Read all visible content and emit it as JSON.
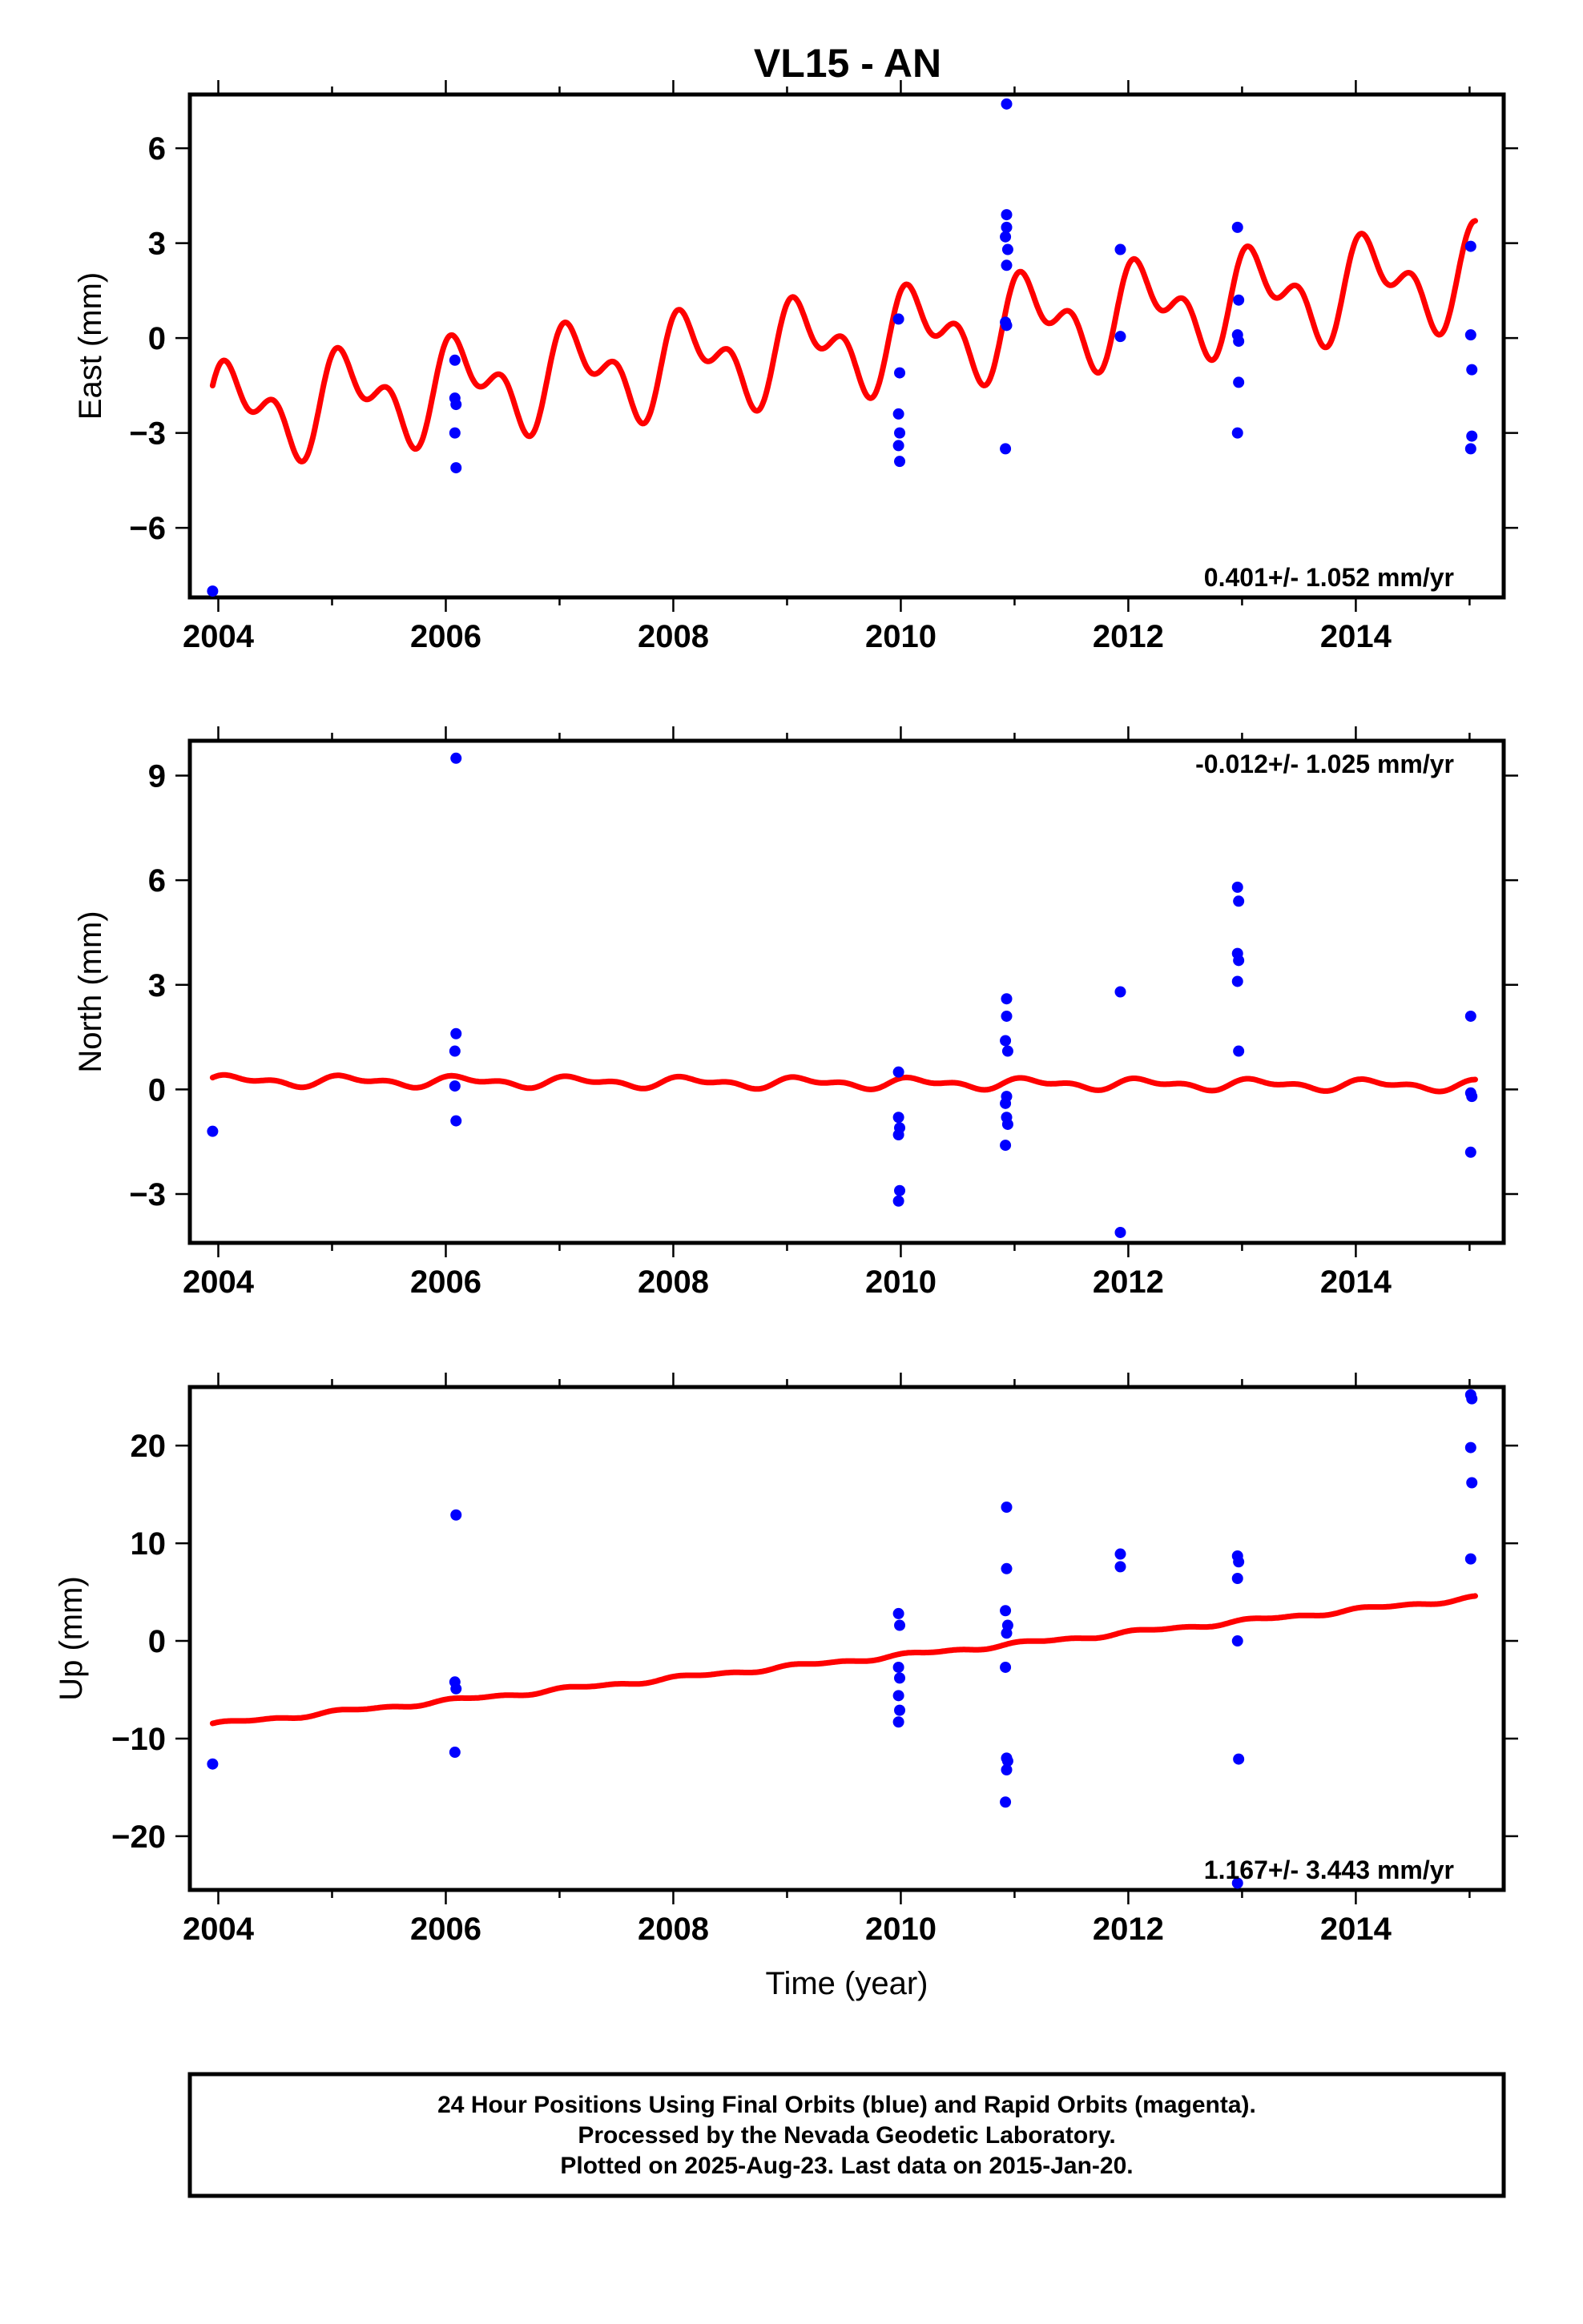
{
  "title": "VL15 - AN",
  "footer": {
    "line1": "24 Hour Positions Using Final Orbits (blue) and Rapid Orbits (magenta).",
    "line2": "Processed by the Nevada Geodetic Laboratory.",
    "line3": "Plotted on 2025-Aug-23. Last data on 2015-Jan-20."
  },
  "colors": {
    "final_orbits": "#0000ff",
    "trend": "#ff0000",
    "frame": "#000000"
  },
  "chart_data": [
    {
      "type": "scatter",
      "ylabel": "East (mm)",
      "xlim": [
        2003.75,
        2015.3
      ],
      "ylim": [
        -8.2,
        7.7
      ],
      "xticks": [
        2004,
        2006,
        2008,
        2010,
        2012,
        2014
      ],
      "yticks": [
        -6,
        -3,
        0,
        3,
        6
      ],
      "ytick_labels": [
        "−6",
        "−3",
        "0",
        "3",
        "6"
      ],
      "rate_label": "0.401+/- 1.052 mm/yr",
      "rate_position": "bottom-right",
      "trend": {
        "rate": 0.401,
        "value_at_2004": -2.4,
        "annual_amplitude": 1.15,
        "semiannual_amplitude": 0.85,
        "x_range": [
          2003.95,
          2015.05
        ]
      },
      "points": [
        [
          2003.95,
          -8.0
        ],
        [
          2006.08,
          -0.7
        ],
        [
          2006.08,
          -1.9
        ],
        [
          2006.09,
          -2.1
        ],
        [
          2006.08,
          -3.0
        ],
        [
          2006.09,
          -4.1
        ],
        [
          2009.98,
          0.6
        ],
        [
          2009.99,
          -1.1
        ],
        [
          2009.98,
          -2.4
        ],
        [
          2009.99,
          -3.0
        ],
        [
          2009.98,
          -3.4
        ],
        [
          2009.99,
          -3.9
        ],
        [
          2010.93,
          7.4
        ],
        [
          2010.93,
          3.9
        ],
        [
          2010.93,
          3.5
        ],
        [
          2010.92,
          3.2
        ],
        [
          2010.94,
          2.8
        ],
        [
          2010.93,
          2.3
        ],
        [
          2010.92,
          0.5
        ],
        [
          2010.93,
          0.4
        ],
        [
          2010.92,
          -3.5
        ],
        [
          2011.93,
          2.8
        ],
        [
          2011.93,
          0.05
        ],
        [
          2012.96,
          3.5
        ],
        [
          2012.97,
          1.2
        ],
        [
          2012.96,
          0.1
        ],
        [
          2012.97,
          -0.1
        ],
        [
          2012.97,
          -1.4
        ],
        [
          2012.96,
          -3.0
        ],
        [
          2015.01,
          2.9
        ],
        [
          2015.01,
          0.1
        ],
        [
          2015.02,
          -1.0
        ],
        [
          2015.02,
          -3.1
        ],
        [
          2015.01,
          -3.5
        ]
      ]
    },
    {
      "type": "scatter",
      "ylabel": "North (mm)",
      "xlim": [
        2003.75,
        2015.3
      ],
      "ylim": [
        -4.4,
        10.0
      ],
      "xticks": [
        2004,
        2006,
        2008,
        2010,
        2012,
        2014
      ],
      "yticks": [
        -3,
        0,
        3,
        6,
        9
      ],
      "ytick_labels": [
        "−3",
        "0",
        "3",
        "6",
        "9"
      ],
      "rate_label": "-0.012+/- 1.025 mm/yr",
      "rate_position": "top-right",
      "trend": {
        "rate": -0.012,
        "value_at_2004": 0.25,
        "annual_amplitude": 0.12,
        "semiannual_amplitude": 0.08,
        "x_range": [
          2003.95,
          2015.05
        ]
      },
      "points": [
        [
          2003.95,
          -1.2
        ],
        [
          2006.09,
          9.5
        ],
        [
          2006.09,
          1.6
        ],
        [
          2006.08,
          1.1
        ],
        [
          2006.08,
          0.1
        ],
        [
          2006.09,
          -0.9
        ],
        [
          2009.98,
          0.5
        ],
        [
          2009.98,
          -0.8
        ],
        [
          2009.99,
          -1.1
        ],
        [
          2009.98,
          -1.3
        ],
        [
          2009.99,
          -2.9
        ],
        [
          2009.98,
          -3.2
        ],
        [
          2010.93,
          2.6
        ],
        [
          2010.93,
          2.1
        ],
        [
          2010.92,
          1.4
        ],
        [
          2010.94,
          1.1
        ],
        [
          2010.93,
          -0.2
        ],
        [
          2010.92,
          -0.4
        ],
        [
          2010.93,
          -0.8
        ],
        [
          2010.94,
          -1.0
        ],
        [
          2010.92,
          -1.6
        ],
        [
          2011.93,
          2.8
        ],
        [
          2011.93,
          -4.1
        ],
        [
          2012.96,
          5.8
        ],
        [
          2012.97,
          5.4
        ],
        [
          2012.96,
          3.9
        ],
        [
          2012.97,
          3.7
        ],
        [
          2012.96,
          3.1
        ],
        [
          2012.97,
          1.1
        ],
        [
          2015.01,
          2.1
        ],
        [
          2015.01,
          -0.1
        ],
        [
          2015.02,
          -0.2
        ],
        [
          2015.01,
          -1.8
        ]
      ]
    },
    {
      "type": "scatter",
      "ylabel": "Up (mm)",
      "xlabel": "Time (year)",
      "xlim": [
        2003.75,
        2015.3
      ],
      "ylim": [
        -25.5,
        26.0
      ],
      "xticks": [
        2004,
        2006,
        2008,
        2010,
        2012,
        2014
      ],
      "yticks": [
        -20,
        -10,
        0,
        10,
        20
      ],
      "ytick_labels": [
        "−20",
        "−10",
        "0",
        "10",
        "20"
      ],
      "rate_label": "1.167+/- 3.443 mm/yr",
      "rate_position": "bottom-right",
      "trend": {
        "rate": 1.167,
        "value_at_2004": -8.5,
        "annual_amplitude": 0.15,
        "semiannual_amplitude": 0.1,
        "x_range": [
          2003.95,
          2015.05
        ]
      },
      "points": [
        [
          2003.95,
          -12.6
        ],
        [
          2006.09,
          12.9
        ],
        [
          2006.08,
          -4.2
        ],
        [
          2006.09,
          -4.9
        ],
        [
          2006.08,
          -11.4
        ],
        [
          2009.98,
          2.8
        ],
        [
          2009.99,
          1.6
        ],
        [
          2009.98,
          -2.7
        ],
        [
          2009.99,
          -3.8
        ],
        [
          2009.98,
          -5.6
        ],
        [
          2009.99,
          -7.1
        ],
        [
          2009.98,
          -8.3
        ],
        [
          2010.93,
          13.7
        ],
        [
          2010.93,
          7.4
        ],
        [
          2010.92,
          3.1
        ],
        [
          2010.94,
          1.6
        ],
        [
          2010.93,
          0.8
        ],
        [
          2010.92,
          -2.7
        ],
        [
          2010.93,
          -12.0
        ],
        [
          2010.94,
          -12.3
        ],
        [
          2010.93,
          -13.2
        ],
        [
          2010.92,
          -16.5
        ],
        [
          2011.93,
          8.9
        ],
        [
          2011.93,
          7.6
        ],
        [
          2012.96,
          8.7
        ],
        [
          2012.97,
          8.1
        ],
        [
          2012.96,
          6.4
        ],
        [
          2012.96,
          0.0
        ],
        [
          2012.97,
          -12.1
        ],
        [
          2012.96,
          -24.8
        ],
        [
          2015.01,
          25.2
        ],
        [
          2015.02,
          24.8
        ],
        [
          2015.01,
          19.8
        ],
        [
          2015.02,
          16.2
        ],
        [
          2015.01,
          8.4
        ]
      ]
    }
  ]
}
